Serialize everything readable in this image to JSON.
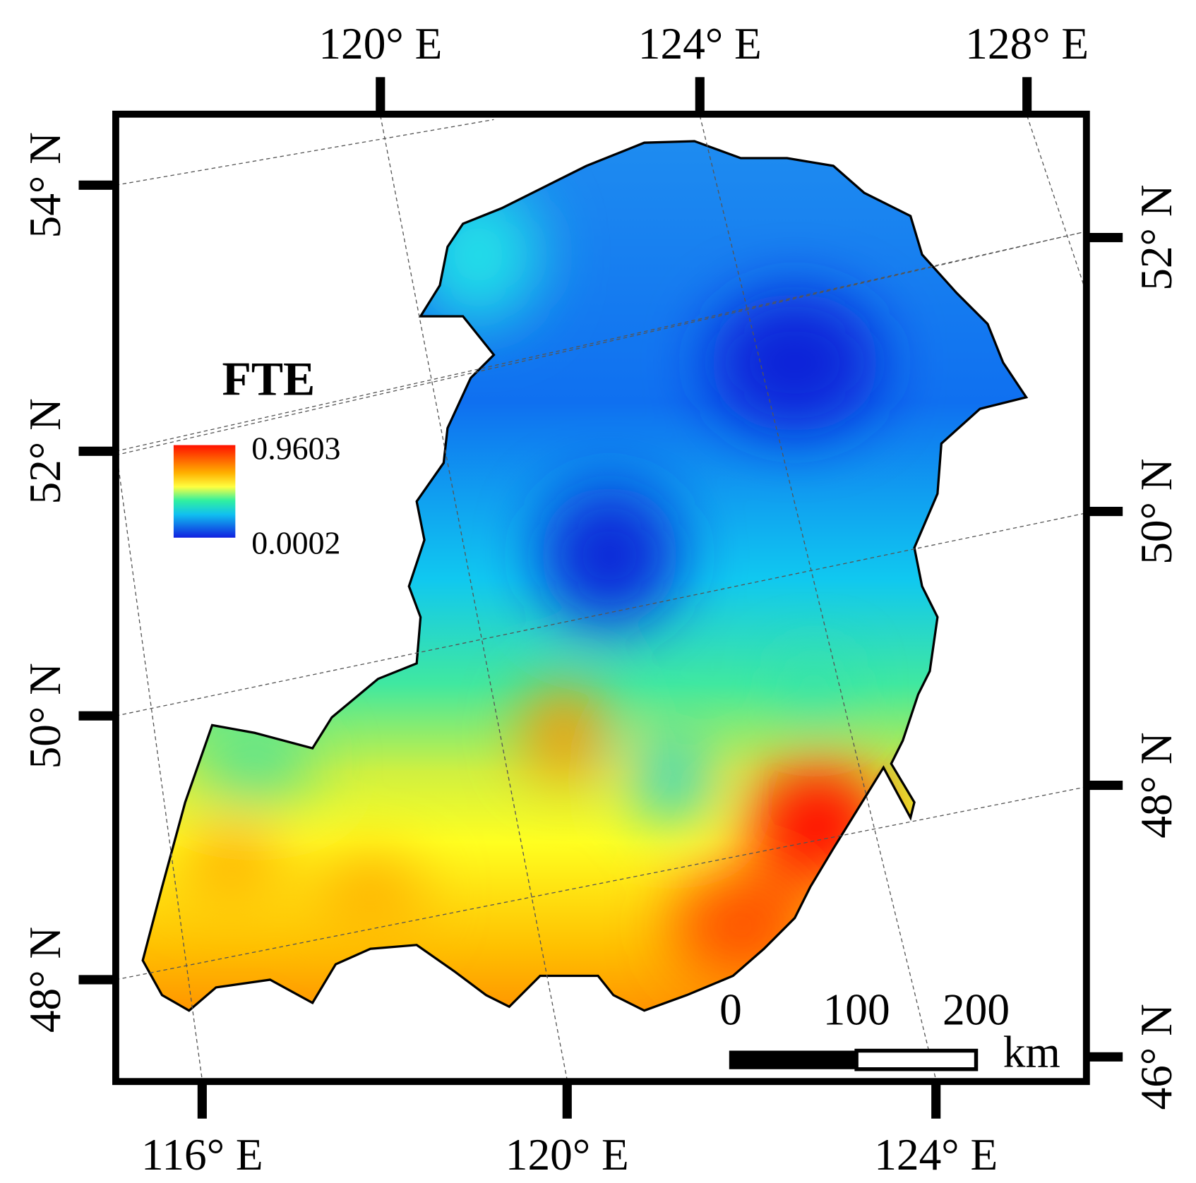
{
  "map": {
    "legend": {
      "title": "FTE",
      "max": "0.9603",
      "min": "0.0002"
    },
    "top_labels": [
      "120° E",
      "124° E",
      "128° E"
    ],
    "bottom_labels": [
      "116° E",
      "120° E",
      "124° E"
    ],
    "left_labels": [
      "54° N",
      "52° N",
      "50° N",
      "48° N"
    ],
    "right_labels": [
      "52° N",
      "50° N",
      "48° N",
      "46° N"
    ],
    "scale_bar": {
      "labels": [
        "0",
        "100",
        "200"
      ],
      "unit": "km"
    }
  }
}
